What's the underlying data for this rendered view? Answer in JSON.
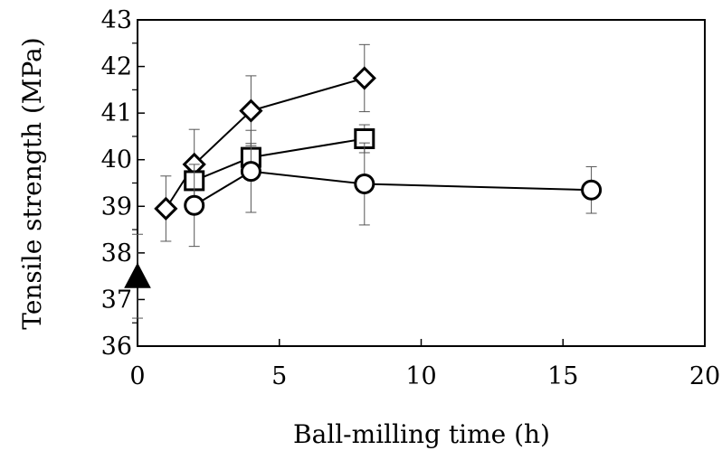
{
  "chart_data": {
    "type": "scatter",
    "title": "",
    "xlabel": "Ball-milling time (h)",
    "ylabel": "Tensile strength (MPa)",
    "xlim": [
      0,
      20
    ],
    "ylim": [
      36,
      43
    ],
    "x_ticks": [
      0,
      5,
      10,
      15,
      20
    ],
    "y_ticks": [
      36,
      37,
      38,
      39,
      40,
      41,
      42,
      43
    ],
    "grid": false,
    "legend": "none",
    "series": [
      {
        "marker": "diamond",
        "connected": true,
        "points": [
          {
            "x": 1,
            "y": 38.95,
            "err": 0.7
          },
          {
            "x": 2,
            "y": 39.9,
            "err": 0.75
          },
          {
            "x": 4,
            "y": 41.05,
            "err": 0.75
          },
          {
            "x": 8,
            "y": 41.75,
            "err": 0.72
          }
        ]
      },
      {
        "marker": "square",
        "connected": true,
        "points": [
          {
            "x": 2,
            "y": 39.55,
            "err": 0.05
          },
          {
            "x": 4,
            "y": 40.05,
            "err": 0.3
          },
          {
            "x": 8,
            "y": 40.45,
            "err": 0.3
          }
        ]
      },
      {
        "marker": "circle",
        "connected": true,
        "points": [
          {
            "x": 2,
            "y": 39.02,
            "err": 0.88
          },
          {
            "x": 4,
            "y": 39.75,
            "err": 0.88
          },
          {
            "x": 8,
            "y": 39.48,
            "err": 0.88
          },
          {
            "x": 16,
            "y": 39.35,
            "err": 0.5
          }
        ]
      },
      {
        "marker": "triangle",
        "connected": false,
        "points": [
          {
            "x": 0,
            "y": 37.5,
            "err": 0.9
          }
        ]
      }
    ]
  }
}
